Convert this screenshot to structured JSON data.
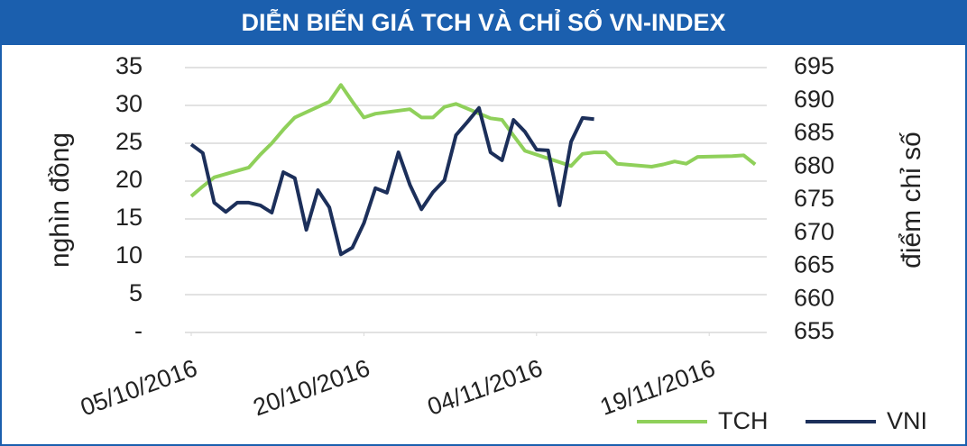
{
  "chart_data": {
    "type": "line",
    "title": "DIỄN BIẾN GIÁ TCH VÀ CHỈ SỐ VN-INDEX",
    "ylabel": "nghìn đồng",
    "y2label": "điểm chỉ số",
    "xlim": [
      "05/10/2016",
      "24/11/2016"
    ],
    "xticks": [
      "05/10/2016",
      "20/10/2016",
      "04/11/2016",
      "19/11/2016"
    ],
    "ylim": [
      0,
      35
    ],
    "yticks": [
      {
        "value": 0,
        "label": "-"
      },
      5,
      10,
      15,
      20,
      25,
      30,
      35
    ],
    "y2lim": [
      655,
      695
    ],
    "y2ticks": [
      655,
      660,
      665,
      670,
      675,
      680,
      685,
      690,
      695
    ],
    "grid": true,
    "legend": "bottom-right",
    "series": [
      {
        "name": "TCH",
        "color": "#8fd05a",
        "axis": "y",
        "x": [
          "05/10/2016",
          "06/10/2016",
          "07/10/2016",
          "10/10/2016",
          "11/10/2016",
          "12/10/2016",
          "13/10/2016",
          "14/10/2016",
          "17/10/2016",
          "18/10/2016",
          "19/10/2016",
          "20/10/2016",
          "21/10/2016",
          "24/10/2016",
          "25/10/2016",
          "26/10/2016",
          "27/10/2016",
          "28/10/2016",
          "31/10/2016",
          "01/11/2016",
          "02/11/2016",
          "03/11/2016",
          "04/11/2016",
          "07/11/2016",
          "08/11/2016",
          "09/11/2016",
          "10/11/2016",
          "11/11/2016",
          "14/11/2016",
          "15/11/2016",
          "16/11/2016",
          "17/11/2016",
          "18/11/2016",
          "21/11/2016",
          "22/11/2016",
          "23/11/2016"
        ],
        "values": [
          18,
          19.3,
          20.5,
          21.8,
          23.5,
          25,
          26.8,
          28.4,
          30.5,
          32.7,
          30.5,
          28.4,
          28.9,
          29.5,
          28.4,
          28.4,
          29.8,
          30.2,
          28.3,
          28.1,
          26,
          24,
          23.5,
          22,
          23.6,
          23.8,
          23.8,
          22.3,
          21.9,
          22.2,
          22.6,
          22.3,
          23.2,
          23.3,
          23.4,
          22.2
        ]
      },
      {
        "name": "VNI",
        "color": "#1c2f5a",
        "axis": "y2",
        "x": [
          "05/10/2016",
          "06/10/2016",
          "07/10/2016",
          "08/10/2016",
          "09/10/2016",
          "10/10/2016",
          "11/10/2016",
          "12/10/2016",
          "13/10/2016",
          "14/10/2016",
          "15/10/2016",
          "16/10/2016",
          "17/10/2016",
          "18/10/2016",
          "19/10/2016",
          "20/10/2016",
          "21/10/2016",
          "22/10/2016",
          "23/10/2016",
          "24/10/2016",
          "25/10/2016",
          "26/10/2016",
          "27/10/2016",
          "28/10/2016",
          "29/10/2016",
          "30/10/2016",
          "31/10/2016",
          "01/11/2016",
          "02/11/2016",
          "03/11/2016",
          "04/11/2016",
          "05/11/2016",
          "06/11/2016",
          "07/11/2016",
          "08/11/2016",
          "09/11/2016"
        ],
        "values": [
          683.4,
          682.1,
          674.6,
          673.2,
          674.6,
          674.6,
          674.2,
          673.1,
          679.2,
          678.3,
          670.5,
          676.5,
          673.9,
          666.8,
          667.8,
          671.5,
          676.8,
          676.1,
          682.2,
          677.3,
          673.6,
          676.2,
          678.0,
          684.8,
          686.8,
          688.9,
          682.2,
          681.0,
          687.1,
          685.3,
          682.6,
          682.5,
          674.2,
          683.8,
          687.4,
          687.2
        ]
      }
    ]
  }
}
